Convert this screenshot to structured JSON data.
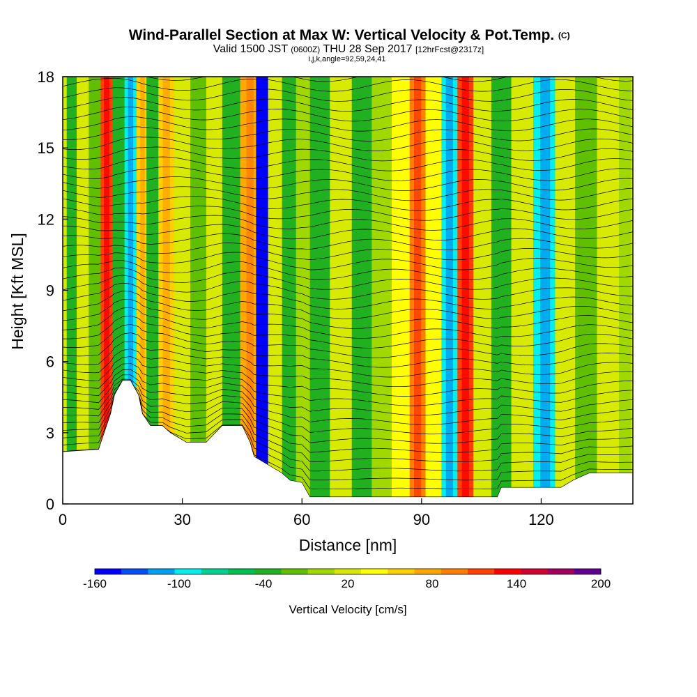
{
  "title": "Wind-Parallel Section at Max W: Vertical Velocity & Pot.Temp.",
  "copyright": "(C)",
  "subtitle": {
    "valid_label": "Valid",
    "local_time": "1500 JST",
    "utc": "(0600Z)",
    "date": "THU 28 Sep 2017",
    "forecast": "[12hrFcst@2317z]"
  },
  "grid_info": "i,j,k,angle=92,59,24,41",
  "chart_data": {
    "type": "heatmap",
    "description_fields": "vertical velocity (cm/s) filled contours with potential temperature contour lines over terrain",
    "xlabel": "Distance [nm]",
    "ylabel": "Height [Kft MSL]",
    "xlim": [
      0,
      143
    ],
    "ylim": [
      0,
      18
    ],
    "xticks": [
      0,
      30,
      60,
      90,
      120
    ],
    "yticks": [
      0,
      3,
      6,
      9,
      12,
      15,
      18
    ],
    "colorbar": {
      "label": "Vertical Velocity [cm/s]",
      "levels": [
        -160,
        -140,
        -120,
        -100,
        -80,
        -60,
        -40,
        -20,
        0,
        20,
        40,
        60,
        80,
        100,
        120,
        140,
        160,
        180,
        200
      ],
      "tick_labels": [
        -160,
        -100,
        -40,
        20,
        80,
        140,
        200
      ],
      "colors": [
        "#0000ff",
        "#0050f0",
        "#00a0f0",
        "#00f0f0",
        "#00d090",
        "#00c050",
        "#20b020",
        "#60c000",
        "#a0d800",
        "#d8ea00",
        "#ffff00",
        "#ffd000",
        "#ffa800",
        "#ff8000",
        "#ff4000",
        "#ff0000",
        "#d00030",
        "#a00060",
        "#600090"
      ]
    },
    "terrain_height_kft": [
      {
        "x": 0,
        "h": 2.2
      },
      {
        "x": 9,
        "h": 2.3
      },
      {
        "x": 12,
        "h": 3.8
      },
      {
        "x": 13,
        "h": 4.6
      },
      {
        "x": 15,
        "h": 5.2
      },
      {
        "x": 17,
        "h": 5.2
      },
      {
        "x": 19,
        "h": 4.6
      },
      {
        "x": 20,
        "h": 3.8
      },
      {
        "x": 22,
        "h": 3.3
      },
      {
        "x": 25,
        "h": 3.3
      },
      {
        "x": 27,
        "h": 3.0
      },
      {
        "x": 31,
        "h": 2.6
      },
      {
        "x": 36,
        "h": 2.6
      },
      {
        "x": 40,
        "h": 3.3
      },
      {
        "x": 45,
        "h": 3.3
      },
      {
        "x": 47,
        "h": 2.6
      },
      {
        "x": 48,
        "h": 2.0
      },
      {
        "x": 52,
        "h": 1.6
      },
      {
        "x": 55,
        "h": 1.3
      },
      {
        "x": 57,
        "h": 1.0
      },
      {
        "x": 60,
        "h": 0.9
      },
      {
        "x": 62,
        "h": 0.3
      },
      {
        "x": 80,
        "h": 0.3
      },
      {
        "x": 109,
        "h": 0.3
      },
      {
        "x": 110,
        "h": 0.7
      },
      {
        "x": 125,
        "h": 0.7
      },
      {
        "x": 128,
        "h": 1.0
      },
      {
        "x": 132,
        "h": 1.3
      },
      {
        "x": 143,
        "h": 1.3
      }
    ],
    "vertical_velocity_columns_cm_s": [
      {
        "x": 2,
        "w": -30
      },
      {
        "x": 5,
        "w": 30
      },
      {
        "x": 8,
        "w": -10
      },
      {
        "x": 11,
        "w": 120
      },
      {
        "x": 14,
        "w": -40
      },
      {
        "x": 17,
        "w": -100
      },
      {
        "x": 20,
        "w": 60
      },
      {
        "x": 22,
        "w": -40
      },
      {
        "x": 26,
        "w": 60
      },
      {
        "x": 30,
        "w": 20
      },
      {
        "x": 34,
        "w": -20
      },
      {
        "x": 38,
        "w": 30
      },
      {
        "x": 42,
        "w": -40
      },
      {
        "x": 47,
        "w": 80
      },
      {
        "x": 50,
        "w": -160
      },
      {
        "x": 53,
        "w": 30
      },
      {
        "x": 57,
        "w": -30
      },
      {
        "x": 60,
        "w": 10
      },
      {
        "x": 64,
        "w": -40
      },
      {
        "x": 70,
        "w": 20
      },
      {
        "x": 75,
        "w": -30
      },
      {
        "x": 80,
        "w": 10
      },
      {
        "x": 85,
        "w": 40
      },
      {
        "x": 89,
        "w": 100
      },
      {
        "x": 93,
        "w": 50
      },
      {
        "x": 97,
        "w": -90
      },
      {
        "x": 101,
        "w": 120
      },
      {
        "x": 105,
        "w": 20
      },
      {
        "x": 110,
        "w": -30
      },
      {
        "x": 115,
        "w": 30
      },
      {
        "x": 121,
        "w": -90
      },
      {
        "x": 126,
        "w": 30
      },
      {
        "x": 131,
        "w": -20
      },
      {
        "x": 137,
        "w": 20
      },
      {
        "x": 142,
        "w": 10
      }
    ]
  }
}
